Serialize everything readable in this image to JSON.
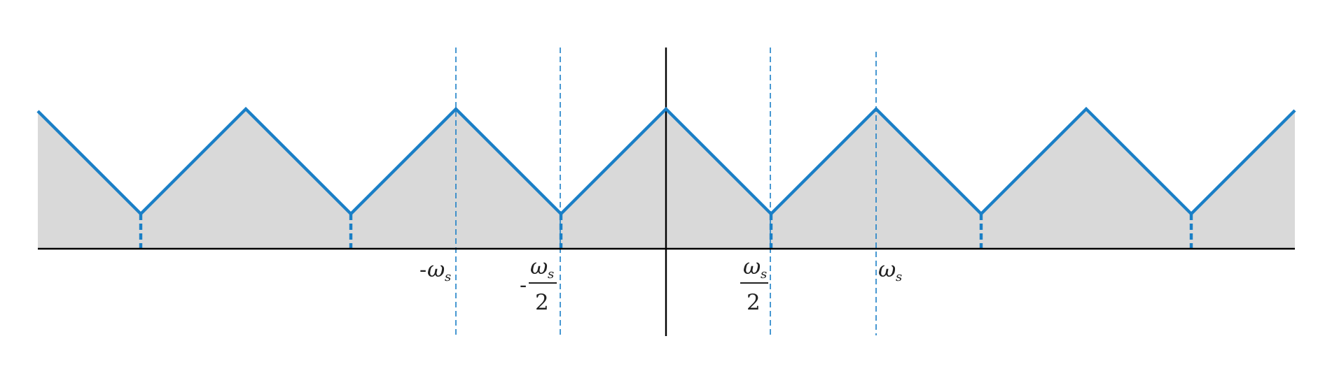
{
  "colors": {
    "background": "#ffffff",
    "fill": "#d9d9d9",
    "curve": "#1a7fc6",
    "axis": "#000000",
    "guides": "#1a7fc6",
    "text": "#222222"
  },
  "axis_ticks": {
    "neg_ws": {
      "sign": "-",
      "omega": "ω",
      "sub": "s"
    },
    "neg_half_ws": {
      "sign": "-",
      "omega": "ω",
      "sub": "s",
      "denominator": "2"
    },
    "half_ws": {
      "omega": "ω",
      "sub": "s",
      "denominator": "2"
    },
    "ws": {
      "omega": "ω",
      "sub": "s"
    }
  },
  "signal": {
    "period_units": 1,
    "peak_level": 1.0,
    "valley_level": 0.25,
    "x_range": [
      -1.5,
      1.5
    ],
    "peaks_at": [
      -1,
      -0.5,
      0,
      0.5,
      1
    ],
    "valleys_at": [
      -1.25,
      -0.75,
      -0.25,
      0.25,
      0.75,
      1.25
    ]
  }
}
